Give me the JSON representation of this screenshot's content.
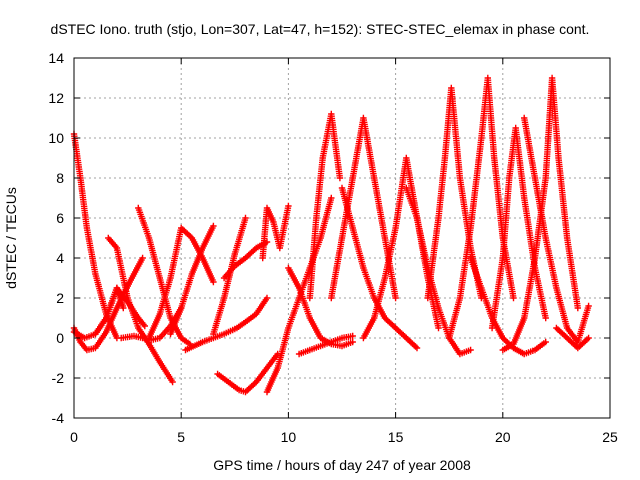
{
  "chart_data": {
    "type": "scatter",
    "title": "dSTEC Iono. truth (stjo, Lon=307, Lat=47, h=152): STEC-STEC_elemax in phase cont.",
    "xlabel": "GPS time / hours of day 247 of year 2008",
    "ylabel": "dSTEC  / TECUs",
    "xlim": [
      0,
      25
    ],
    "ylim": [
      -4,
      14
    ],
    "xticks": [
      0,
      5,
      10,
      15,
      20,
      25
    ],
    "yticks": [
      -4,
      -2,
      0,
      2,
      4,
      6,
      8,
      10,
      12,
      14
    ],
    "grid": true,
    "marker": "+",
    "color": "#ff0000",
    "series": [
      {
        "x": [
          0.0,
          0.3,
          0.6,
          1.0,
          1.5,
          2.0
        ],
        "y": [
          10.2,
          8.0,
          5.5,
          3.2,
          1.2,
          0.0
        ]
      },
      {
        "x": [
          0.0,
          0.3,
          0.6,
          1.0,
          1.5,
          2.0,
          2.6,
          3.2
        ],
        "y": [
          0.5,
          -0.2,
          -0.6,
          -0.5,
          0.3,
          1.5,
          2.8,
          4.0
        ]
      },
      {
        "x": [
          0.0,
          0.5,
          1.0,
          1.5,
          2.0,
          2.3
        ],
        "y": [
          0.3,
          0.0,
          0.2,
          1.0,
          2.5,
          1.5
        ]
      },
      {
        "x": [
          1.0,
          1.5,
          2.0,
          2.5,
          3.0,
          3.3
        ],
        "y": [
          0.2,
          1.0,
          2.5,
          1.8,
          1.0,
          0.6
        ]
      },
      {
        "x": [
          1.6,
          2.0,
          2.5,
          3.0,
          3.5,
          4.0,
          4.6
        ],
        "y": [
          5.0,
          4.5,
          2.0,
          0.5,
          -0.3,
          -1.2,
          -2.2
        ]
      },
      {
        "x": [
          2.2,
          2.8,
          3.2,
          3.6,
          4.0,
          4.5,
          5.0
        ],
        "y": [
          0.0,
          0.1,
          0.0,
          -0.1,
          0.0,
          0.6,
          1.5
        ]
      },
      {
        "x": [
          3.0,
          3.5,
          4.0,
          4.5,
          5.0,
          5.4
        ],
        "y": [
          6.5,
          5.0,
          3.0,
          1.0,
          0.0,
          -0.3
        ]
      },
      {
        "x": [
          3.5,
          4.0,
          4.5,
          5.0,
          5.5,
          6.0,
          6.5
        ],
        "y": [
          0.0,
          1.2,
          3.0,
          5.5,
          5.0,
          4.0,
          2.8
        ]
      },
      {
        "x": [
          4.5,
          5.0,
          5.5,
          6.0,
          6.5
        ],
        "y": [
          0.2,
          1.5,
          3.2,
          4.5,
          5.6
        ]
      },
      {
        "x": [
          5.2,
          6.0,
          7.0,
          7.6,
          8.0,
          8.5,
          9.0
        ],
        "y": [
          -0.6,
          -0.2,
          0.2,
          0.5,
          0.8,
          1.2,
          2.0
        ]
      },
      {
        "x": [
          6.5,
          7.0,
          7.5,
          8.0
        ],
        "y": [
          0.2,
          2.0,
          4.2,
          6.0
        ]
      },
      {
        "x": [
          7.0,
          7.5,
          8.0,
          8.5,
          9.0
        ],
        "y": [
          3.0,
          3.6,
          4.0,
          4.5,
          4.8
        ]
      },
      {
        "x": [
          6.7,
          7.2,
          7.7,
          8.0,
          8.5,
          9.0,
          9.5
        ],
        "y": [
          -1.8,
          -2.2,
          -2.6,
          -2.7,
          -2.2,
          -1.5,
          -0.8
        ]
      },
      {
        "x": [
          8.8,
          9.0,
          9.3,
          9.6,
          10.0
        ],
        "y": [
          4.0,
          6.5,
          5.8,
          4.5,
          6.6
        ]
      },
      {
        "x": [
          9.0,
          9.5,
          10.0,
          10.5,
          11.0,
          11.5,
          12.0
        ],
        "y": [
          -2.7,
          -1.5,
          0.5,
          2.0,
          3.5,
          5.0,
          7.0
        ]
      },
      {
        "x": [
          10.0,
          10.5,
          11.0,
          11.5,
          12.0,
          12.5,
          13.0
        ],
        "y": [
          3.5,
          2.5,
          1.0,
          0.0,
          -0.3,
          -0.4,
          -0.2
        ]
      },
      {
        "x": [
          10.5,
          11.0,
          11.5,
          12.0,
          12.5,
          13.0
        ],
        "y": [
          -0.8,
          -0.6,
          -0.4,
          -0.2,
          0.0,
          0.1
        ]
      },
      {
        "x": [
          11.0,
          11.3,
          11.6,
          12.0,
          12.4
        ],
        "y": [
          2.0,
          6.0,
          9.0,
          11.2,
          8.0
        ]
      },
      {
        "x": [
          12.0,
          12.5,
          13.0,
          13.5,
          14.0,
          14.5,
          15.0
        ],
        "y": [
          2.0,
          5.0,
          8.0,
          11.0,
          8.0,
          5.0,
          2.0
        ]
      },
      {
        "x": [
          12.5,
          13.0,
          13.5,
          14.0,
          14.5,
          15.0,
          15.5,
          16.0
        ],
        "y": [
          7.5,
          5.5,
          3.5,
          2.0,
          1.0,
          0.5,
          0.0,
          -0.5
        ]
      },
      {
        "x": [
          13.5,
          14.0,
          14.5,
          15.0,
          15.5,
          16.0,
          16.5,
          17.0
        ],
        "y": [
          0.0,
          1.0,
          3.0,
          5.5,
          9.0,
          6.0,
          3.0,
          0.5
        ]
      },
      {
        "x": [
          15.5,
          16.0,
          16.5,
          17.0,
          17.5,
          18.0,
          18.5
        ],
        "y": [
          7.5,
          6.0,
          3.5,
          1.5,
          0.0,
          -0.8,
          -0.6
        ]
      },
      {
        "x": [
          16.5,
          17.0,
          17.3,
          17.6,
          18.0,
          18.5,
          19.0
        ],
        "y": [
          2.0,
          6.0,
          9.0,
          12.5,
          8.0,
          4.5,
          2.0
        ]
      },
      {
        "x": [
          17.5,
          18.0,
          18.5,
          19.0,
          19.3,
          19.6,
          20.0,
          20.5
        ],
        "y": [
          0.0,
          2.0,
          5.5,
          10.0,
          13.0,
          9.0,
          5.0,
          2.0
        ]
      },
      {
        "x": [
          18.5,
          19.0,
          19.5,
          20.0,
          20.5,
          21.0,
          21.5,
          22.0
        ],
        "y": [
          4.0,
          2.5,
          1.0,
          0.0,
          -0.5,
          -0.8,
          -0.6,
          -0.2
        ]
      },
      {
        "x": [
          19.5,
          20.0,
          20.3,
          20.6,
          21.0,
          21.5,
          22.0
        ],
        "y": [
          0.5,
          4.0,
          8.0,
          10.5,
          7.0,
          3.5,
          1.0
        ]
      },
      {
        "x": [
          20.0,
          20.5,
          21.0,
          21.5,
          22.0,
          22.3,
          22.6,
          23.0,
          23.5
        ],
        "y": [
          -0.6,
          -0.3,
          1.0,
          4.0,
          8.0,
          13.0,
          9.0,
          5.0,
          1.5
        ]
      },
      {
        "x": [
          21.0,
          21.5,
          22.0,
          22.5,
          23.0,
          23.5,
          24.0
        ],
        "y": [
          11.0,
          8.0,
          5.0,
          2.5,
          0.5,
          -0.2,
          1.6
        ]
      },
      {
        "x": [
          22.5,
          23.0,
          23.5,
          24.0
        ],
        "y": [
          0.5,
          0.0,
          -0.5,
          0.0
        ]
      }
    ]
  }
}
